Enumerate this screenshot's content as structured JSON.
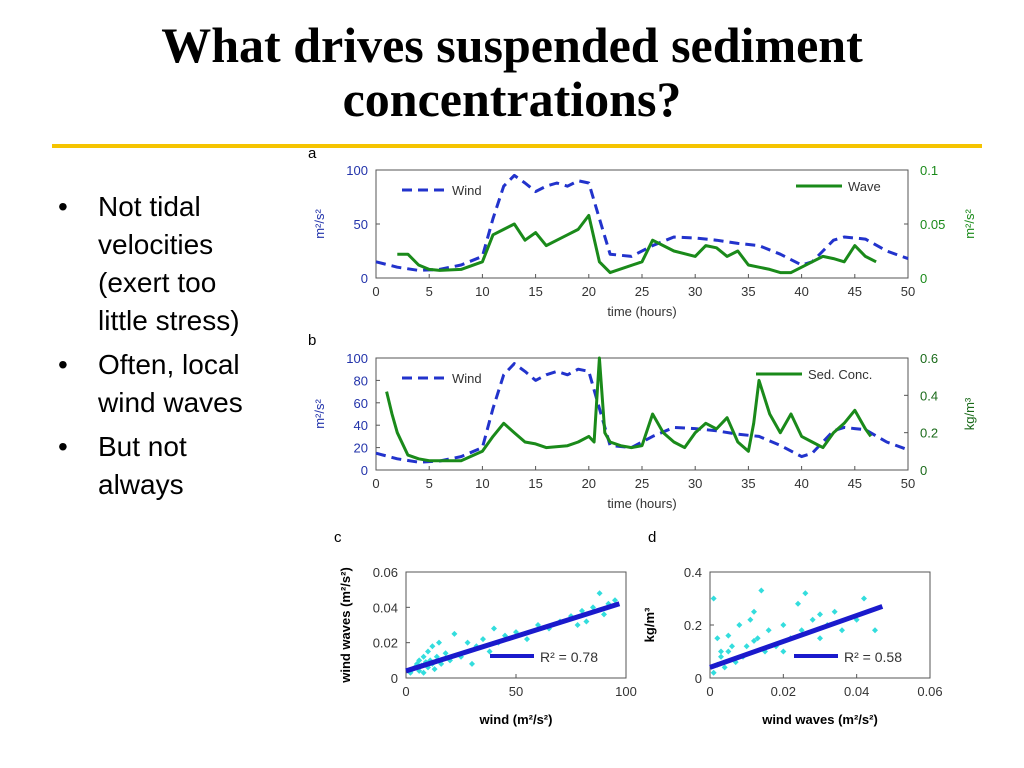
{
  "slide": {
    "title_line1": "What drives suspended sediment",
    "title_line2": "concentrations?",
    "bullets": [
      {
        "text_lines": [
          "Not tidal",
          "velocities",
          "(exert too",
          "little stress)"
        ]
      },
      {
        "text_lines": [
          "Often, local",
          "wind waves"
        ]
      },
      {
        "text_lines": [
          "But not",
          "always"
        ]
      }
    ],
    "bullet_glyph": "•"
  },
  "colors": {
    "wind": "#2233cc",
    "green": "#1a8a1a",
    "scatter": "#33dddd",
    "fit": "#1a1acc",
    "rule": "#f5c400"
  },
  "chart_data": [
    {
      "panel": "a",
      "type": "line",
      "xlabel": "time (hours)",
      "xlim": [
        0,
        50
      ],
      "xticks": [
        0,
        5,
        10,
        15,
        20,
        25,
        30,
        35,
        40,
        45,
        50
      ],
      "ylabel_left": "m²/s²",
      "ylim_left": [
        0,
        100
      ],
      "yticks_left": [
        0,
        50,
        100
      ],
      "ylabel_right": "m²/s²",
      "ylim_right": [
        0,
        0.1
      ],
      "yticks_right": [
        "0",
        "0.05",
        "0.1"
      ],
      "series": [
        {
          "name": "Wind",
          "axis": "left",
          "style": "dashed",
          "x": [
            0,
            2,
            4,
            6,
            8,
            10,
            11,
            12,
            13,
            14,
            15,
            16,
            17,
            18,
            19,
            20,
            21,
            22,
            24,
            26,
            28,
            30,
            32,
            34,
            36,
            38,
            40,
            41,
            42,
            43,
            44,
            45,
            46,
            48,
            50
          ],
          "y": [
            15,
            10,
            7,
            8,
            12,
            20,
            55,
            85,
            95,
            88,
            80,
            85,
            88,
            85,
            90,
            88,
            55,
            22,
            20,
            30,
            38,
            37,
            35,
            32,
            30,
            22,
            12,
            15,
            25,
            35,
            38,
            37,
            36,
            25,
            18
          ]
        },
        {
          "name": "Wave",
          "axis": "right",
          "style": "solid",
          "x": [
            2,
            3,
            4,
            5,
            6,
            8,
            10,
            11,
            12,
            13,
            14,
            15,
            16,
            17,
            18,
            19,
            20,
            21,
            22,
            25,
            26,
            27,
            28,
            30,
            31,
            32,
            33,
            34,
            35,
            36,
            37,
            38,
            39,
            40,
            41,
            42,
            43,
            44,
            45,
            46,
            47
          ],
          "y": [
            0.022,
            0.022,
            0.012,
            0.008,
            0.007,
            0.008,
            0.015,
            0.04,
            0.045,
            0.05,
            0.035,
            0.042,
            0.03,
            0.035,
            0.04,
            0.045,
            0.058,
            0.015,
            0.005,
            0.015,
            0.035,
            0.03,
            0.025,
            0.02,
            0.03,
            0.028,
            0.02,
            0.025,
            0.012,
            0.01,
            0.008,
            0.005,
            0.005,
            0.01,
            0.015,
            0.02,
            0.018,
            0.015,
            0.03,
            0.02,
            0.015
          ]
        }
      ]
    },
    {
      "panel": "b",
      "type": "line",
      "xlabel": "time (hours)",
      "xlim": [
        0,
        50
      ],
      "xticks": [
        0,
        5,
        10,
        15,
        20,
        25,
        30,
        35,
        40,
        45,
        50
      ],
      "ylabel_left": "m²/s²",
      "ylim_left": [
        0,
        100
      ],
      "yticks_left": [
        0,
        20,
        40,
        60,
        80,
        100
      ],
      "ylabel_right": "kg/m³",
      "ylim_right": [
        0,
        0.6
      ],
      "yticks_right": [
        "0",
        "0.2",
        "0.4",
        "0.6"
      ],
      "series": [
        {
          "name": "Wind",
          "axis": "left",
          "style": "dashed",
          "x": [
            0,
            2,
            4,
            6,
            8,
            10,
            11,
            12,
            13,
            14,
            15,
            16,
            17,
            18,
            19,
            20,
            21,
            22,
            24,
            26,
            28,
            30,
            32,
            34,
            36,
            38,
            40,
            41,
            42,
            43,
            44,
            45,
            46,
            48,
            50
          ],
          "y": [
            15,
            10,
            7,
            8,
            12,
            20,
            55,
            85,
            95,
            88,
            80,
            85,
            88,
            85,
            90,
            88,
            55,
            22,
            20,
            30,
            38,
            37,
            35,
            32,
            30,
            22,
            12,
            15,
            25,
            35,
            38,
            37,
            36,
            25,
            18
          ]
        },
        {
          "name": "Sed. Conc.",
          "axis": "right",
          "style": "solid",
          "x": [
            1,
            1.5,
            2,
            3,
            4,
            5,
            6,
            8,
            10,
            11,
            12,
            13,
            14,
            15,
            16,
            18,
            19,
            20,
            20.5,
            21,
            21.5,
            22,
            23,
            24,
            25,
            26,
            27,
            28,
            29,
            30,
            31,
            32,
            33,
            34,
            35,
            35.5,
            36,
            37,
            38,
            39,
            40,
            41,
            42,
            43,
            44,
            45,
            46,
            46.5
          ],
          "y": [
            0.42,
            0.3,
            0.2,
            0.08,
            0.06,
            0.05,
            0.05,
            0.05,
            0.1,
            0.18,
            0.25,
            0.2,
            0.15,
            0.14,
            0.12,
            0.13,
            0.15,
            0.18,
            0.15,
            0.6,
            0.2,
            0.15,
            0.13,
            0.12,
            0.13,
            0.3,
            0.2,
            0.15,
            0.12,
            0.2,
            0.25,
            0.22,
            0.28,
            0.15,
            0.1,
            0.25,
            0.48,
            0.3,
            0.2,
            0.3,
            0.18,
            0.15,
            0.12,
            0.2,
            0.25,
            0.32,
            0.22,
            0.18
          ]
        }
      ]
    },
    {
      "panel": "c",
      "type": "scatter",
      "xlabel": "wind (m²/s²)",
      "ylabel": "wind waves (m²/s²)",
      "xlim": [
        0,
        100
      ],
      "ylim": [
        0,
        0.06
      ],
      "xticks": [
        "0",
        "50",
        "100"
      ],
      "yticks": [
        "0",
        "0.02",
        "0.04",
        "0.06"
      ],
      "fit_label": "R² = 0.78",
      "points_x": [
        2,
        3,
        4,
        5,
        6,
        6,
        7,
        8,
        8,
        9,
        10,
        10,
        11,
        12,
        12,
        13,
        14,
        15,
        16,
        18,
        20,
        22,
        25,
        28,
        30,
        32,
        35,
        38,
        40,
        42,
        45,
        50,
        55,
        60,
        65,
        70,
        75,
        78,
        80,
        82,
        85,
        88,
        90,
        92,
        95
      ],
      "points_y": [
        0.003,
        0.005,
        0.006,
        0.008,
        0.004,
        0.01,
        0.007,
        0.012,
        0.003,
        0.009,
        0.006,
        0.015,
        0.01,
        0.008,
        0.018,
        0.005,
        0.012,
        0.02,
        0.008,
        0.014,
        0.01,
        0.025,
        0.012,
        0.02,
        0.008,
        0.018,
        0.022,
        0.015,
        0.028,
        0.02,
        0.024,
        0.026,
        0.022,
        0.03,
        0.028,
        0.032,
        0.035,
        0.03,
        0.038,
        0.032,
        0.04,
        0.048,
        0.036,
        0.042,
        0.044
      ],
      "fit_x": [
        0,
        97
      ],
      "fit_y": [
        0.004,
        0.042
      ]
    },
    {
      "panel": "d",
      "type": "scatter",
      "xlabel": "wind waves (m²/s²)",
      "ylabel": "kg/m³",
      "xlim": [
        0,
        0.06
      ],
      "ylim": [
        0,
        0.4
      ],
      "xticks": [
        "0",
        "0.02",
        "0.04",
        "0.06"
      ],
      "yticks": [
        "0",
        "0.2",
        "0.4"
      ],
      "fit_label": "R² = 0.58",
      "points_x": [
        0.001,
        0.002,
        0.002,
        0.003,
        0.004,
        0.005,
        0.006,
        0.007,
        0.008,
        0.009,
        0.01,
        0.011,
        0.012,
        0.013,
        0.014,
        0.015,
        0.016,
        0.018,
        0.02,
        0.022,
        0.024,
        0.025,
        0.026,
        0.028,
        0.03,
        0.032,
        0.034,
        0.036,
        0.04,
        0.042,
        0.045,
        0.001,
        0.003,
        0.005,
        0.012,
        0.02,
        0.03
      ],
      "points_y": [
        0.3,
        0.05,
        0.15,
        0.08,
        0.04,
        0.1,
        0.12,
        0.06,
        0.2,
        0.08,
        0.12,
        0.22,
        0.25,
        0.15,
        0.33,
        0.1,
        0.18,
        0.12,
        0.2,
        0.15,
        0.28,
        0.18,
        0.32,
        0.22,
        0.15,
        0.2,
        0.25,
        0.18,
        0.22,
        0.3,
        0.18,
        0.02,
        0.1,
        0.16,
        0.14,
        0.1,
        0.24
      ],
      "fit_x": [
        0,
        0.047
      ],
      "fit_y": [
        0.04,
        0.27
      ]
    }
  ],
  "panel_labels": [
    "a",
    "b",
    "c",
    "d"
  ]
}
